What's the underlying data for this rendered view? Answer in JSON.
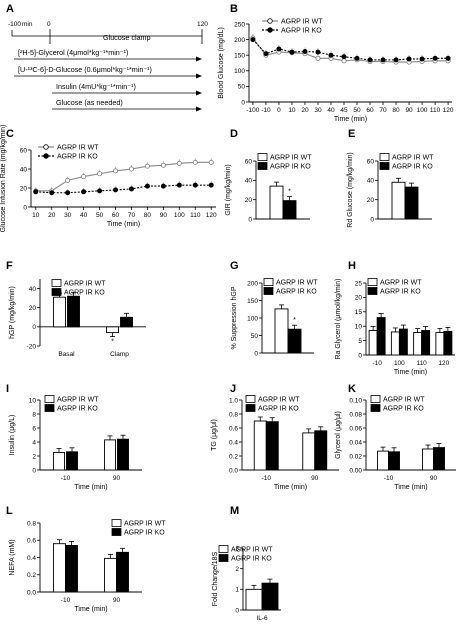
{
  "schematic": {
    "label": "A",
    "t_start": "-100",
    "t_min": "min",
    "t_zero": "0",
    "t_end": "120",
    "clamp": "Glucose clamp",
    "rows": [
      "[²H-5]-Glycerol (4μmol*kg⁻¹*min⁻¹)",
      "[U-¹³C-6]-D-Glucose (0.6μmol*kg⁻¹*min⁻¹)",
      "Insulin (4mU*kg⁻¹*min⁻¹)",
      "Glucose (as needed)"
    ]
  },
  "colors": {
    "wt": "#ffffff",
    "ko": "#000000",
    "wt_line": "#888888",
    "ko_line": "#000000"
  },
  "chart_data": [
    {
      "id": "B",
      "type": "line",
      "ylabel": "Blood Glucose (mg/dL)",
      "xlabel": "Time (min)",
      "x": [
        "-100",
        "-10",
        "0",
        "10",
        "20",
        "30",
        "40",
        "45",
        "50",
        "60",
        "70",
        "80",
        "90",
        "100",
        "110",
        "120"
      ],
      "ylim": [
        0,
        250
      ],
      "yticks": [
        "0",
        "50",
        "100",
        "150",
        "200",
        "250"
      ],
      "series": [
        {
          "name": "AGRP IR WT",
          "values": [
            205,
            150,
            160,
            158,
            155,
            140,
            140,
            132,
            135,
            130,
            130,
            128,
            128,
            130,
            132,
            132
          ]
        },
        {
          "name": "AGRP IR KO",
          "values": [
            200,
            155,
            170,
            160,
            162,
            160,
            150,
            145,
            140,
            135,
            135,
            135,
            138,
            138,
            140,
            140
          ]
        }
      ]
    },
    {
      "id": "C",
      "type": "line",
      "ylabel": "Glucose Infusion Rate (mg/kg/min)",
      "xlabel": "Time (min)",
      "x": [
        "10",
        "20",
        "30",
        "40",
        "50",
        "60",
        "70",
        "80",
        "90",
        "100",
        "110",
        "120"
      ],
      "ylim": [
        0,
        60
      ],
      "yticks": [
        "0",
        "20",
        "40",
        "60"
      ],
      "series": [
        {
          "name": "AGRP IR WT",
          "values": [
            17,
            17,
            28,
            32,
            35,
            38,
            40,
            43,
            44,
            46,
            47,
            47
          ]
        },
        {
          "name": "AGRP IR KO",
          "values": [
            16,
            15,
            15,
            16,
            17,
            18,
            19,
            22,
            22,
            23,
            23,
            23
          ]
        }
      ]
    },
    {
      "id": "D",
      "type": "bar",
      "ylabel": "GIR (mg/kg/min)",
      "ylim": [
        0,
        60
      ],
      "yticks": [
        "0",
        "20",
        "40",
        "60"
      ],
      "series": [
        {
          "name": "AGRP IR WT",
          "values": [
            34
          ]
        },
        {
          "name": "AGRP IR KO",
          "values": [
            19
          ]
        }
      ],
      "annotation": "*"
    },
    {
      "id": "E",
      "type": "bar",
      "ylabel": "Rd Glucose (mg/kg/min)",
      "ylim": [
        0,
        60
      ],
      "yticks": [
        "0",
        "20",
        "40",
        "60"
      ],
      "series": [
        {
          "name": "AGRP IR WT",
          "values": [
            38
          ]
        },
        {
          "name": "AGRP IR KO",
          "values": [
            33
          ]
        }
      ]
    },
    {
      "id": "F",
      "type": "bar",
      "ylabel": "hGP (mg/kg/min)",
      "categories": [
        "Basal",
        "Clamp"
      ],
      "ylim": [
        -20,
        50
      ],
      "yticks": [
        "-20",
        "0",
        "20",
        "40"
      ],
      "series": [
        {
          "name": "AGRP IR WT",
          "values": [
            31,
            -6
          ]
        },
        {
          "name": "AGRP IR KO",
          "values": [
            32,
            10
          ]
        }
      ],
      "annotation": "*"
    },
    {
      "id": "G",
      "type": "bar",
      "ylabel": "% Suppression hGP",
      "ylim": [
        0,
        200
      ],
      "yticks": [
        "0",
        "50",
        "100",
        "150",
        "200"
      ],
      "series": [
        {
          "name": "AGRP IR WT",
          "values": [
            126
          ]
        },
        {
          "name": "AGRP IR KO",
          "values": [
            68
          ]
        }
      ],
      "annotation": "*"
    },
    {
      "id": "H",
      "type": "bar",
      "ylabel": "Ra Glycerol (μmol/kg/min)",
      "xlabel": "Time (min)",
      "categories": [
        "-10",
        "100",
        "110",
        "120"
      ],
      "ylim": [
        0,
        25
      ],
      "yticks": [
        "0",
        "5",
        "10",
        "15",
        "20",
        "25"
      ],
      "series": [
        {
          "name": "AGRP IR WT",
          "values": [
            8.5,
            8,
            7.8,
            7.8
          ]
        },
        {
          "name": "AGRP IR KO",
          "values": [
            13,
            9,
            8.5,
            8.2
          ]
        }
      ]
    },
    {
      "id": "I",
      "type": "bar",
      "ylabel": "Insulin (μg/L)",
      "xlabel": "Time (min)",
      "categories": [
        "-10",
        "90"
      ],
      "ylim": [
        0,
        10
      ],
      "yticks": [
        "0",
        "2",
        "4",
        "6",
        "8",
        "10"
      ],
      "series": [
        {
          "name": "AGRP IR WT",
          "values": [
            2.5,
            4.3
          ]
        },
        {
          "name": "AGRP IR KO",
          "values": [
            2.6,
            4.4
          ]
        }
      ]
    },
    {
      "id": "J",
      "type": "bar",
      "ylabel": "TG (μg/μl)",
      "xlabel": "Time (min)",
      "categories": [
        "-10",
        "90"
      ],
      "ylim": [
        0,
        1.0
      ],
      "yticks": [
        "0.0",
        "0.2",
        "0.4",
        "0.6",
        "0.8",
        "1.0"
      ],
      "series": [
        {
          "name": "AGRP IR WT",
          "values": [
            0.7,
            0.53
          ]
        },
        {
          "name": "AGRP IR KO",
          "values": [
            0.69,
            0.56
          ]
        }
      ]
    },
    {
      "id": "K",
      "type": "bar",
      "ylabel": "Glycerol (μg/μl)",
      "xlabel": "Time (min)",
      "categories": [
        "-10",
        "90"
      ],
      "ylim": [
        0,
        0.1
      ],
      "yticks": [
        "0.00",
        "0.02",
        "0.04",
        "0.06",
        "0.08",
        "0.10"
      ],
      "series": [
        {
          "name": "AGRP IR WT",
          "values": [
            0.027,
            0.03
          ]
        },
        {
          "name": "AGRP IR KO",
          "values": [
            0.026,
            0.032
          ]
        }
      ]
    },
    {
      "id": "L",
      "type": "bar",
      "ylabel": "NEFA (mM)",
      "xlabel": "Time (min)",
      "categories": [
        "-10",
        "90"
      ],
      "ylim": [
        0,
        0.8
      ],
      "yticks": [
        "0.0",
        "0.2",
        "0.4",
        "0.6",
        "0.8"
      ],
      "series": [
        {
          "name": "AGRP IR WT",
          "values": [
            0.56,
            0.39
          ]
        },
        {
          "name": "AGRP IR KO",
          "values": [
            0.54,
            0.46
          ]
        }
      ]
    },
    {
      "id": "M",
      "type": "bar",
      "ylabel": "Fold Change/18S",
      "categories": [
        "IL-6"
      ],
      "ylim": [
        0,
        3
      ],
      "yticks": [
        "0",
        "1",
        "2",
        "3"
      ],
      "series": [
        {
          "name": "AGRP IR WT",
          "values": [
            1.0
          ]
        },
        {
          "name": "AGRP IR KO",
          "values": [
            1.3
          ]
        }
      ]
    }
  ]
}
